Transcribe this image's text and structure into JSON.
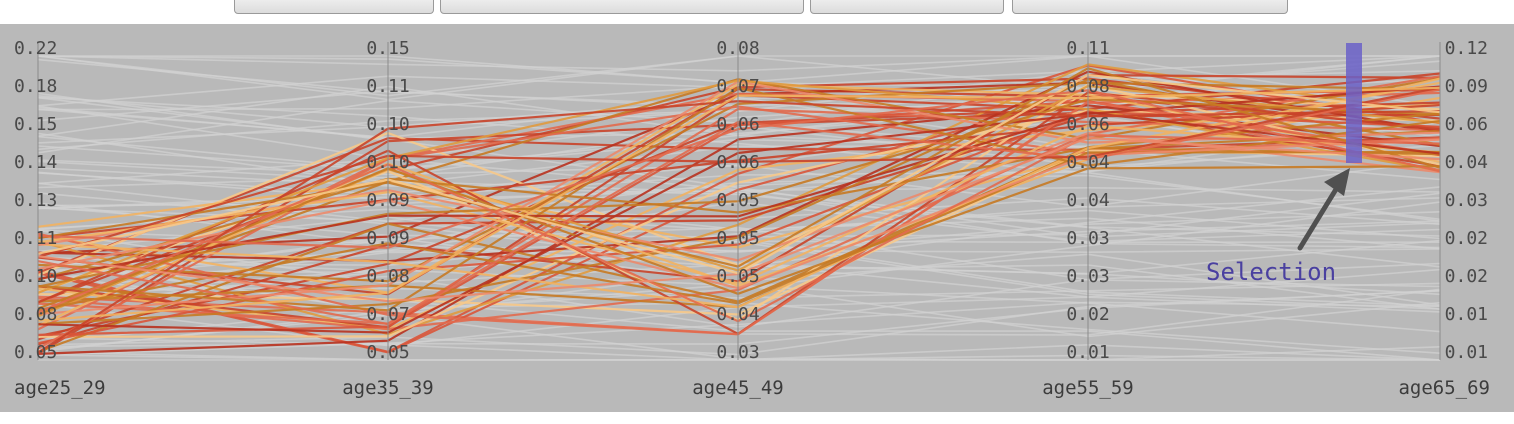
{
  "chart_data": {
    "type": "parallel-coordinates",
    "axes": [
      {
        "name": "age25_29",
        "ticks": [
          "0.22",
          "0.18",
          "0.15",
          "0.14",
          "0.13",
          "0.11",
          "0.10",
          "0.08",
          "0.05"
        ]
      },
      {
        "name": "age35_39",
        "ticks": [
          "0.15",
          "0.11",
          "0.10",
          "0.10",
          "0.09",
          "0.09",
          "0.08",
          "0.07",
          "0.05"
        ]
      },
      {
        "name": "age45_49",
        "ticks": [
          "0.08",
          "0.07",
          "0.06",
          "0.06",
          "0.05",
          "0.05",
          "0.05",
          "0.04",
          "0.03"
        ]
      },
      {
        "name": "age55_59",
        "ticks": [
          "0.11",
          "0.08",
          "0.06",
          "0.04",
          "0.04",
          "0.03",
          "0.03",
          "0.02",
          "0.01"
        ]
      },
      {
        "name": "age65_69",
        "ticks": [
          "0.12",
          "0.09",
          "0.06",
          "0.04",
          "0.03",
          "0.02",
          "0.02",
          "0.01",
          "0.01"
        ]
      }
    ],
    "selection": {
      "axis": "age65_69",
      "range": [
        0.04,
        0.12
      ]
    },
    "annotation": "Selection",
    "colors": {
      "background": "#b9b9b9",
      "context_lines": "#d2d2d2",
      "selected_palette": [
        "#b8321f",
        "#c9442a",
        "#d9553a",
        "#e26a4e",
        "#ec8a6c",
        "#c67a24",
        "#e09a3e",
        "#f2b262",
        "#f7c98a"
      ],
      "brush": "#6a60c8",
      "annotation_text": "#4a40a0",
      "arrow": "#505050"
    }
  }
}
